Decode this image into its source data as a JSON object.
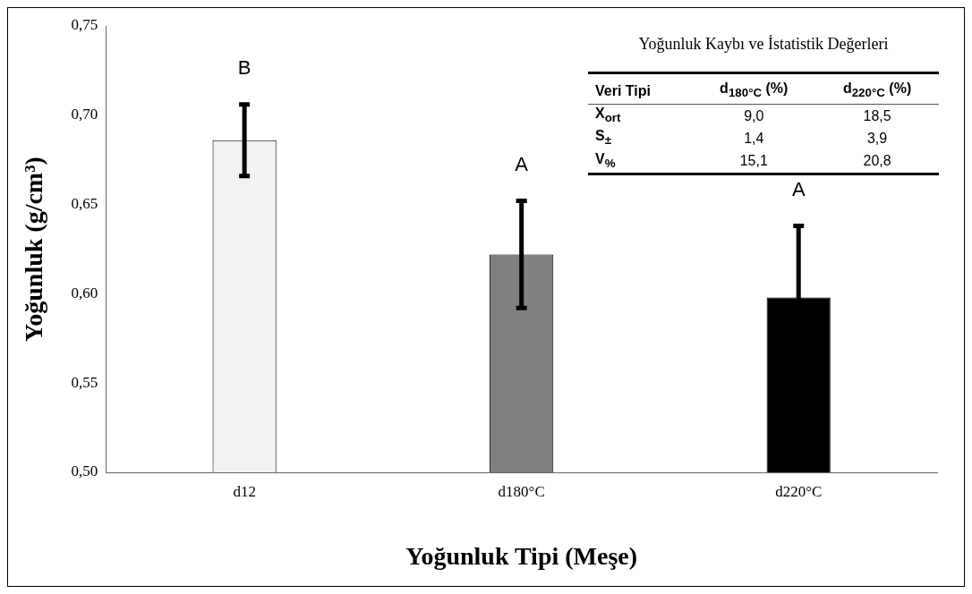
{
  "chart_data": {
    "type": "bar",
    "xlabel": "Yoğunluk Tipi (Meşe)",
    "ylabel": "Yoğunluk (g/cm³)",
    "categories": [
      "d12",
      "d180°C",
      "d220°C"
    ],
    "values": [
      0.686,
      0.622,
      0.598
    ],
    "errors": [
      0.02,
      0.03,
      0.04
    ],
    "colors": [
      "#f2f2f2",
      "#808080",
      "#000000"
    ],
    "ylim": [
      0.5,
      0.75
    ],
    "yticks": [
      {
        "value": 0.5,
        "label": "0,50"
      },
      {
        "value": 0.55,
        "label": "0,55"
      },
      {
        "value": 0.6,
        "label": "0,60"
      },
      {
        "value": 0.65,
        "label": "0,65"
      },
      {
        "value": 0.7,
        "label": "0,70"
      },
      {
        "value": 0.75,
        "label": "0,75"
      }
    ],
    "grid": false,
    "legend": false,
    "annotations": [
      "Yoğunluk Kaybı ve İstatistik Değerleri",
      "Veri Tipi",
      "d$_{180°C}$ (%)",
      "d$_{220°C}$ (%)",
      "X$_{ort}$",
      "9,0",
      "18,5",
      "S$_{±}$",
      "1,4",
      "3,9",
      "V$_{%}$",
      "15,1",
      "20,8",
      "B",
      "A",
      "A"
    ]
  }
}
